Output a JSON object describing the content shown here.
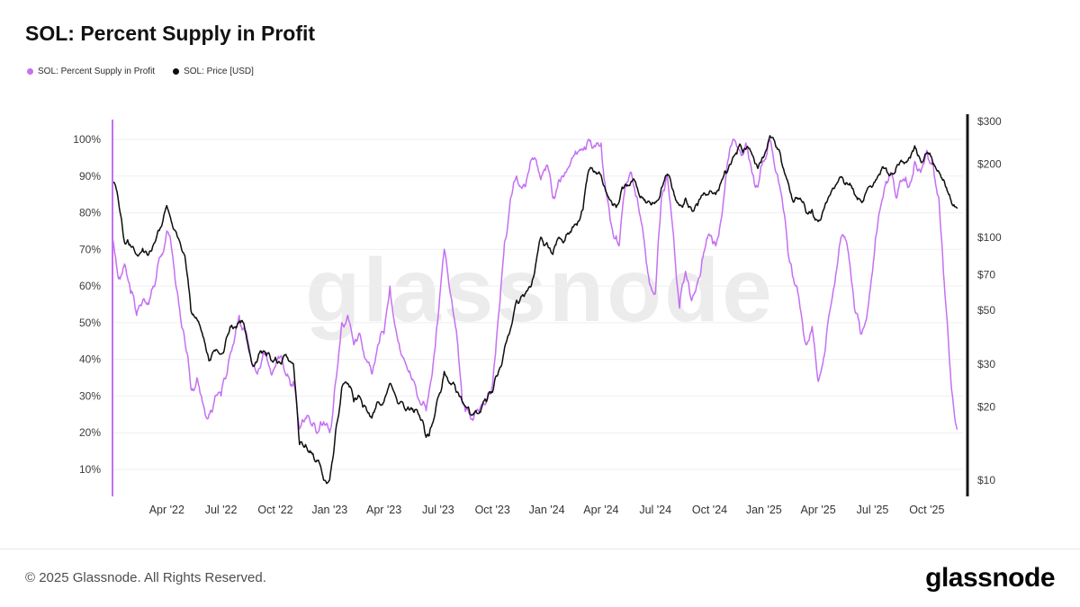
{
  "page": {
    "title": "SOL: Percent Supply in Profit",
    "footer": {
      "copyright": "© 2025 Glassnode. All Rights Reserved.",
      "brand": "glassnode"
    }
  },
  "watermark": "glassnode",
  "legend": [
    {
      "label": "SOL: Percent Supply in Profit",
      "color": "#c570f2"
    },
    {
      "label": "SOL: Price [USD]",
      "color": "#0d0d0d"
    }
  ],
  "chart_data": {
    "type": "line",
    "title": "SOL: Percent Supply in Profit",
    "legend_position": "top-left",
    "grid": "horizontal",
    "x_start_month": "2022-01",
    "x_end_month": "2025-11",
    "samples_per_month": 3,
    "x_tick_months": [
      3,
      6,
      9,
      12,
      15,
      18,
      21,
      24,
      27,
      30,
      33,
      36,
      39,
      42,
      45
    ],
    "x_tick_labels": [
      "Apr '22",
      "Jul '22",
      "Oct '22",
      "Jan '23",
      "Apr '23",
      "Jul '23",
      "Oct '23",
      "Jan '24",
      "Apr '24",
      "Jul '24",
      "Oct '24",
      "Jan '25",
      "Apr '25",
      "Jul '25",
      "Oct '25"
    ],
    "left_axis": {
      "unit": "%",
      "scale": "linear",
      "min": 10,
      "max": 100,
      "tick_values": [
        10,
        20,
        30,
        40,
        50,
        60,
        70,
        80,
        90,
        100
      ],
      "tick_labels": [
        "10%",
        "20%",
        "30%",
        "40%",
        "50%",
        "60%",
        "70%",
        "80%",
        "90%",
        "100%"
      ]
    },
    "right_axis": {
      "unit": "USD",
      "scale": "log",
      "min": 10,
      "max": 300,
      "tick_values": [
        10,
        20,
        30,
        50,
        70,
        100,
        200,
        300
      ],
      "tick_labels": [
        "$10",
        "$20",
        "$30",
        "$50",
        "$70",
        "$100",
        "$200",
        "$300"
      ]
    },
    "series": [
      {
        "name": "SOL: Percent Supply in Profit",
        "axis": "left",
        "color": "#c570f2",
        "unit": "%",
        "values": [
          73,
          62,
          66,
          58,
          52,
          56,
          55,
          60,
          68,
          75,
          68,
          55,
          45,
          32,
          35,
          28,
          25,
          30,
          30,
          36,
          44,
          52,
          48,
          40,
          36,
          42,
          38,
          38,
          41,
          36,
          34,
          21,
          24,
          22,
          20,
          23,
          20,
          34,
          50,
          52,
          44,
          47,
          40,
          36,
          44,
          47,
          60,
          48,
          41,
          37,
          34,
          28,
          26,
          36,
          52,
          70,
          58,
          48,
          28,
          26,
          25,
          27,
          29,
          33,
          52,
          72,
          84,
          90,
          87,
          91,
          95,
          89,
          93,
          84,
          89,
          91,
          94,
          96,
          97,
          100,
          98,
          99,
          84,
          74,
          71,
          87,
          91,
          84,
          74,
          61,
          58,
          84,
          90,
          74,
          54,
          64,
          56,
          61,
          69,
          74,
          71,
          79,
          94,
          100,
          97,
          99,
          91,
          87,
          94,
          100,
          91,
          84,
          69,
          61,
          54,
          44,
          49,
          34,
          41,
          54,
          64,
          74,
          69,
          54,
          47,
          51,
          64,
          79,
          87,
          91,
          84,
          89,
          87,
          94,
          91,
          97,
          94,
          84,
          58,
          34,
          21
        ]
      },
      {
        "name": "SOL: Price [USD]",
        "axis": "right",
        "color": "#0d0d0d",
        "unit": "USD",
        "values": [
          170,
          140,
          95,
          92,
          85,
          90,
          85,
          95,
          110,
          135,
          110,
          98,
          84,
          50,
          46,
          39,
          31,
          34,
          33,
          39,
          42,
          45,
          41,
          31,
          31,
          34,
          33,
          32,
          30,
          32,
          30,
          14,
          14,
          13,
          12,
          10,
          10,
          16,
          24,
          25,
          21,
          22,
          20,
          18,
          21,
          21,
          25,
          22,
          21,
          20,
          19,
          18,
          15,
          17,
          22,
          28,
          25,
          23,
          21,
          20,
          19,
          19,
          21,
          23,
          28,
          35,
          42,
          55,
          58,
          62,
          72,
          100,
          95,
          85,
          100,
          97,
          105,
          112,
          130,
          190,
          185,
          180,
          150,
          135,
          140,
          165,
          170,
          160,
          145,
          140,
          140,
          160,
          182,
          155,
          135,
          145,
          130,
          135,
          152,
          155,
          150,
          172,
          188,
          215,
          242,
          230,
          220,
          192,
          215,
          262,
          235,
          200,
          168,
          140,
          145,
          126,
          130,
          116,
          132,
          150,
          165,
          176,
          165,
          150,
          142,
          155,
          162,
          180,
          192,
          182,
          196,
          205,
          212,
          238,
          205,
          222,
          200,
          186,
          166,
          142,
          132
        ]
      }
    ]
  }
}
